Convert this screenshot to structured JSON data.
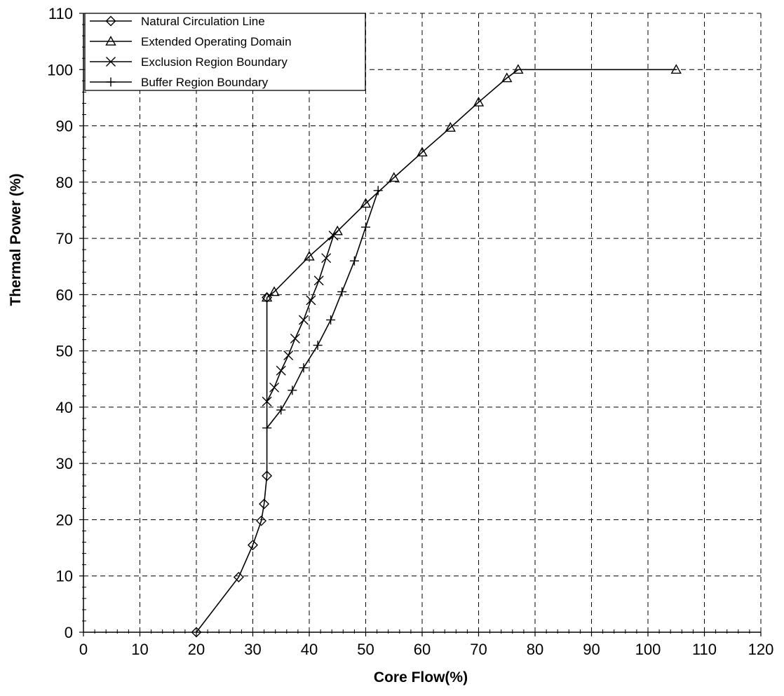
{
  "chart_data": {
    "type": "line",
    "xlabel": "Core Flow(%)",
    "ylabel": "Thermal Power (%)",
    "xlim": [
      0,
      120
    ],
    "ylim": [
      0,
      110
    ],
    "x_ticks": [
      0,
      10,
      20,
      30,
      40,
      50,
      60,
      70,
      80,
      90,
      100,
      110,
      120
    ],
    "y_ticks": [
      0,
      10,
      20,
      30,
      40,
      50,
      60,
      70,
      80,
      90,
      100,
      110
    ],
    "grid": true,
    "legend_position": "top-left",
    "series": [
      {
        "name": "Natural Circulation Line",
        "marker": "diamond",
        "points": [
          [
            20,
            0
          ],
          [
            27.5,
            9.8
          ],
          [
            30,
            15.5
          ],
          [
            31.5,
            19.8
          ],
          [
            32,
            22.8
          ],
          [
            32.5,
            27.8
          ],
          [
            32.5,
            59.5
          ]
        ],
        "marked": [
          true,
          true,
          true,
          true,
          true,
          true,
          true
        ]
      },
      {
        "name": "Extended Operating Domain",
        "marker": "triangle",
        "points": [
          [
            32.5,
            59.5
          ],
          [
            33.8,
            60.5
          ],
          [
            40,
            66.8
          ],
          [
            45,
            71.3
          ],
          [
            50,
            76.2
          ],
          [
            55,
            80.8
          ],
          [
            60,
            85.3
          ],
          [
            65,
            89.7
          ],
          [
            70,
            94.2
          ],
          [
            75,
            98.5
          ],
          [
            77,
            100
          ],
          [
            105,
            100
          ]
        ],
        "marked": [
          true,
          true,
          true,
          true,
          true,
          true,
          true,
          true,
          true,
          true,
          true,
          true
        ]
      },
      {
        "name": "Exclusion Region Boundary",
        "marker": "x",
        "points": [
          [
            32.5,
            41
          ],
          [
            33.8,
            43.5
          ],
          [
            35,
            46.5
          ],
          [
            36.3,
            49.2
          ],
          [
            37.5,
            52.2
          ],
          [
            39,
            55.5
          ],
          [
            40.3,
            59
          ],
          [
            41.7,
            62.5
          ],
          [
            43,
            66.5
          ],
          [
            44.3,
            70.5
          ]
        ],
        "marked": [
          true,
          true,
          true,
          true,
          true,
          true,
          true,
          true,
          true,
          true
        ]
      },
      {
        "name": "Buffer Region Boundary",
        "marker": "plus",
        "points": [
          [
            32.5,
            36.3
          ],
          [
            35,
            39.5
          ],
          [
            37,
            43
          ],
          [
            39,
            47
          ],
          [
            41.5,
            51
          ],
          [
            43.8,
            55.5
          ],
          [
            45.8,
            60.5
          ],
          [
            48,
            66
          ],
          [
            50,
            72
          ],
          [
            52.2,
            78.5
          ]
        ],
        "marked": [
          true,
          true,
          true,
          true,
          true,
          true,
          true,
          true,
          true,
          true
        ]
      }
    ]
  }
}
